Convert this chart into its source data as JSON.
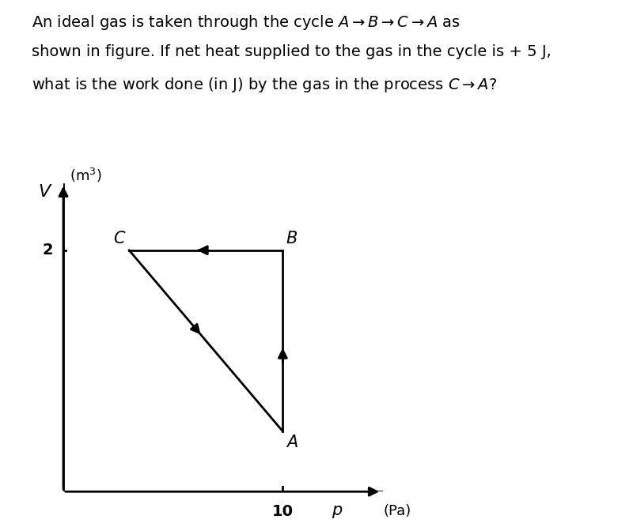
{
  "points": {
    "A": [
      10,
      0.5
    ],
    "B": [
      10,
      2
    ],
    "C": [
      3,
      2
    ]
  },
  "background_color": "#ffffff",
  "line_color": "#000000",
  "text_color": "#000000",
  "figsize": [
    8.0,
    6.62
  ],
  "dpi": 100,
  "xlim": [
    0,
    15
  ],
  "ylim": [
    0,
    2.6
  ],
  "x_tick": 10,
  "y_tick": 2,
  "x_tick_label": "10",
  "y_tick_label": "2"
}
